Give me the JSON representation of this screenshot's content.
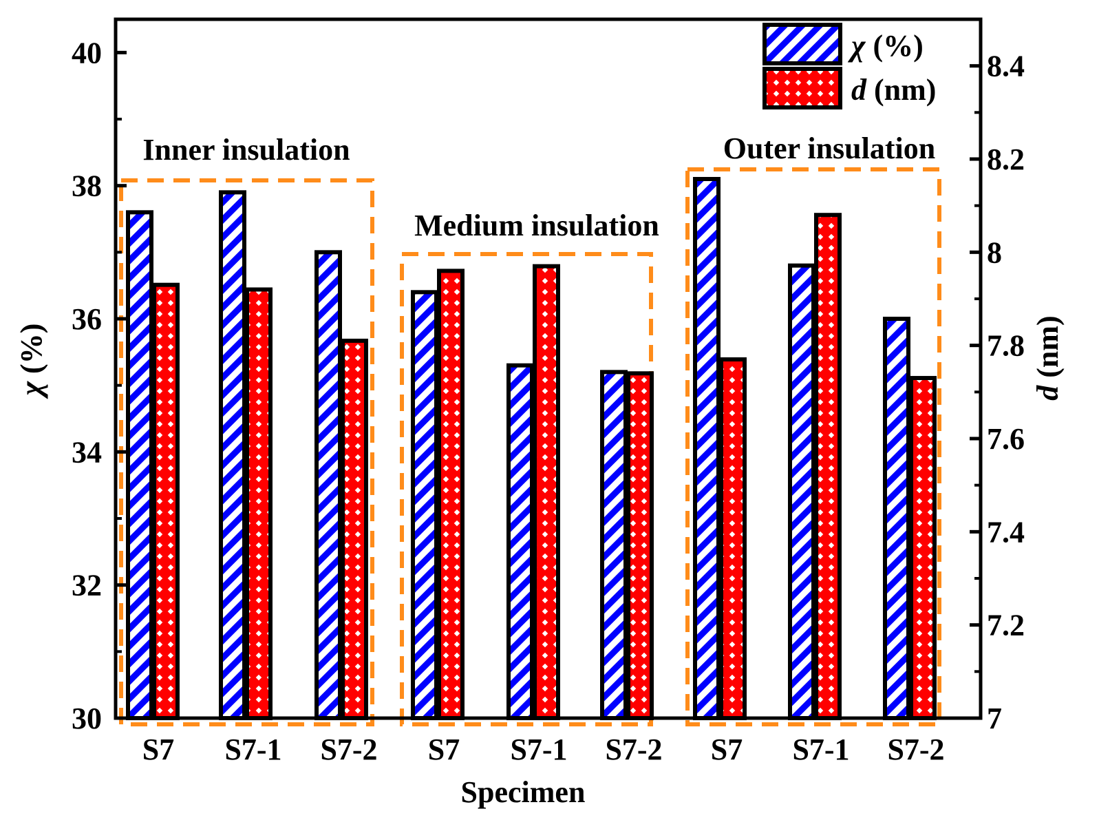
{
  "colors": {
    "chi_stroke": "#0000ff",
    "d_fill": "#ff0000",
    "group_box": "#ff8c1a",
    "axis": "#000000"
  },
  "chart_data": {
    "type": "bar",
    "xlabel": "Specimen",
    "ylabel_left": {
      "symbol": "χ",
      "unit": " (%)"
    },
    "ylabel_right": {
      "symbol": "d",
      "unit": " (nm)"
    },
    "ylim_left": [
      30,
      40.5
    ],
    "ylim_right": [
      7.0,
      8.5
    ],
    "yticks_left": [
      "30",
      "32",
      "34",
      "36",
      "38",
      "40"
    ],
    "yticks_right": [
      "7",
      "7.2",
      "7.4",
      "7.6",
      "7.8",
      "8",
      "8.2",
      "8.4"
    ],
    "legend_position": "top-right",
    "legend": [
      {
        "symbol": "χ",
        "unit": " (%)",
        "pattern": "diagonal-hatch-blue"
      },
      {
        "symbol": "d",
        "unit": " (nm)",
        "pattern": "cross-hatch-red"
      }
    ],
    "groups": [
      {
        "label": "Inner insulation",
        "categories": [
          "S7",
          "S7-1",
          "S7-2"
        ]
      },
      {
        "label": "Medium insulation",
        "categories": [
          "S7",
          "S7-1",
          "S7-2"
        ]
      },
      {
        "label": "Outer insulation",
        "categories": [
          "S7",
          "S7-1",
          "S7-2"
        ]
      }
    ],
    "categories": [
      "S7",
      "S7-1",
      "S7-2",
      "S7",
      "S7-1",
      "S7-2",
      "S7",
      "S7-1",
      "S7-2"
    ],
    "series": [
      {
        "name": "χ (%)",
        "axis": "left",
        "values": [
          37.6,
          37.9,
          37.0,
          36.4,
          35.3,
          35.2,
          38.1,
          36.8,
          36.0
        ]
      },
      {
        "name": "d (nm)",
        "axis": "right",
        "values": [
          7.93,
          7.92,
          7.81,
          7.96,
          7.97,
          7.74,
          7.77,
          8.08,
          7.73
        ]
      }
    ]
  }
}
